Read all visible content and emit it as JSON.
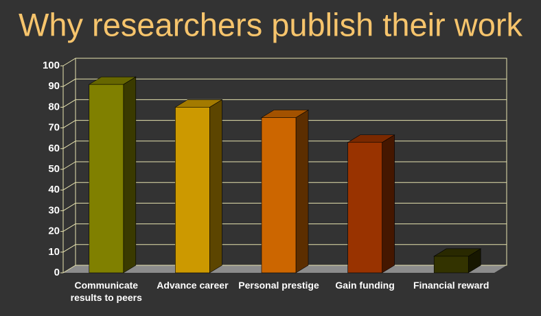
{
  "chart_data": {
    "type": "bar3d",
    "title": "Why researchers publish their work",
    "categories": [
      "Communicate results to peers",
      "Advance career",
      "Personal prestige",
      "Gain funding",
      "Financial reward"
    ],
    "values": [
      91,
      80,
      75,
      63,
      8
    ],
    "colors": [
      "#808000",
      "#cc9900",
      "#cc6600",
      "#993300",
      "#333300"
    ],
    "ylim": [
      0,
      100
    ],
    "yticks": [
      0,
      10,
      20,
      30,
      40,
      50,
      60,
      70,
      80,
      90,
      100
    ],
    "grid": true
  }
}
